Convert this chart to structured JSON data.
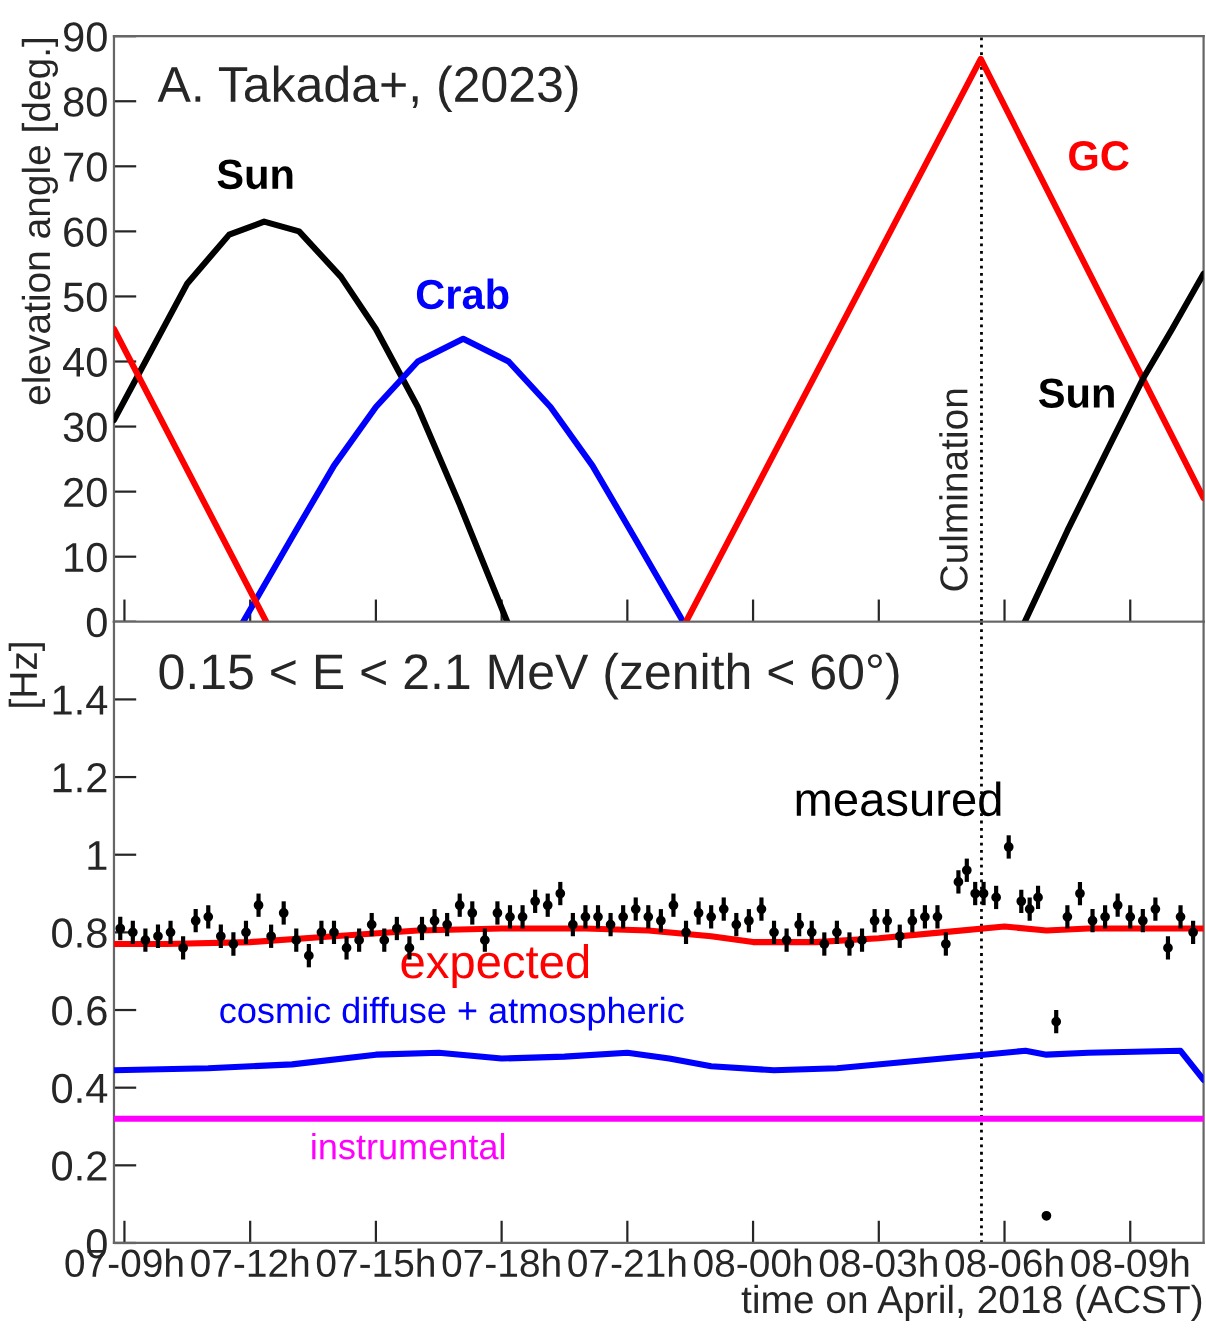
{
  "chart_data": [
    {
      "type": "line",
      "annotations": [
        "A. Takada+, (2023)"
      ],
      "ylabel": "elevation angle [deg.]",
      "xlim": [
        "2018-04-07T08:45",
        "2018-04-08T10:45"
      ],
      "xticks": [
        {
          "value": "2018-04-07T09:00",
          "label": null
        },
        {
          "value": "2018-04-07T12:00",
          "label": null
        },
        {
          "value": "2018-04-07T15:00",
          "label": null
        },
        {
          "value": "2018-04-07T18:00",
          "label": null
        },
        {
          "value": "2018-04-07T21:00",
          "label": null
        },
        {
          "value": "2018-04-08T00:00",
          "label": null
        },
        {
          "value": "2018-04-08T03:00",
          "label": null
        },
        {
          "value": "2018-04-08T06:00",
          "label": null
        },
        {
          "value": "2018-04-08T09:00",
          "label": null
        }
      ],
      "ylim": [
        0,
        90
      ],
      "yticks": [
        0,
        10,
        20,
        30,
        40,
        50,
        60,
        70,
        80,
        90
      ],
      "tick_labels": "y",
      "grid": false,
      "legend": false,
      "marker": "none",
      "line_style": "solid",
      "ref_lines": [
        {
          "axis": "x",
          "value": "2018-04-08T05:27",
          "label": "Culmination",
          "line_style": "dotted",
          "color": "#000000"
        }
      ],
      "series": [
        {
          "name": "Sun",
          "color": "#000000",
          "x": [
            "2018-04-07T08:45",
            "2018-04-07T09:30",
            "2018-04-07T10:30",
            "2018-04-07T11:30",
            "2018-04-07T12:20",
            "2018-04-07T13:10",
            "2018-04-07T14:10",
            "2018-04-07T15:00",
            "2018-04-07T16:00",
            "2018-04-07T17:00",
            "2018-04-07T18:08"
          ],
          "values": [
            31,
            40,
            52,
            59.5,
            61.5,
            60,
            53,
            45,
            33,
            18,
            0
          ]
        },
        {
          "name": "Crab",
          "color": "#0000ff",
          "x": [
            "2018-04-07T11:50",
            "2018-04-07T13:00",
            "2018-04-07T14:00",
            "2018-04-07T15:00",
            "2018-04-07T16:00",
            "2018-04-07T17:05",
            "2018-04-07T18:10",
            "2018-04-07T19:10",
            "2018-04-07T20:10",
            "2018-04-07T21:10",
            "2018-04-07T22:20"
          ],
          "values": [
            0,
            13,
            24,
            33,
            40,
            43.5,
            40,
            33,
            24,
            13,
            0
          ]
        },
        {
          "name": "GC",
          "color": "#ff0000",
          "x": [
            "2018-04-07T08:45",
            "2018-04-07T12:23",
            "2018-04-07T17:00",
            "2018-04-07T22:24",
            "2018-04-08T05:26",
            "2018-04-08T10:45"
          ],
          "values": [
            45,
            0,
            null,
            0,
            86.5,
            19
          ]
        },
        {
          "name": "Sun",
          "color": "#000000",
          "x": [
            "2018-04-08T06:29",
            "2018-04-08T07:30",
            "2018-04-08T08:30",
            "2018-04-08T09:20",
            "2018-04-08T10:00",
            "2018-04-08T10:45"
          ],
          "values": [
            0,
            14,
            27,
            37.7,
            45,
            53.5
          ]
        }
      ]
    },
    {
      "type": "line",
      "annotations": [
        "0.15 < E < 2.1 MeV (zenith < 60°)"
      ],
      "ylabel": "[Hz]",
      "xlabel": "time on April, 2018 (ACST)",
      "xlim": [
        "2018-04-07T08:45",
        "2018-04-08T10:45"
      ],
      "xticks": [
        {
          "value": "2018-04-07T09:00",
          "label": "07-09h"
        },
        {
          "value": "2018-04-07T12:00",
          "label": "07-12h"
        },
        {
          "value": "2018-04-07T15:00",
          "label": "07-15h"
        },
        {
          "value": "2018-04-07T18:00",
          "label": "07-18h"
        },
        {
          "value": "2018-04-07T21:00",
          "label": "07-21h"
        },
        {
          "value": "2018-04-08T00:00",
          "label": "08-00h"
        },
        {
          "value": "2018-04-08T03:00",
          "label": "08-03h"
        },
        {
          "value": "2018-04-08T06:00",
          "label": "08-06h"
        },
        {
          "value": "2018-04-08T09:00",
          "label": "08-09h"
        }
      ],
      "ylim": [
        0,
        1.6
      ],
      "yticks": [
        0,
        0.2,
        0.4,
        0.6,
        0.8,
        1,
        1.2,
        1.4
      ],
      "grid": false,
      "legend": false,
      "line_style": "solid",
      "ref_lines": [
        {
          "axis": "x",
          "value": "2018-04-08T05:27",
          "label": null,
          "line_style": "dotted",
          "color": "#000000"
        }
      ],
      "series": [
        {
          "name": "measured",
          "type": "scatter",
          "marker": "circle",
          "color": "#000000",
          "x": [
            "2018-04-07T08:54",
            "2018-04-07T09:12",
            "2018-04-07T09:30",
            "2018-04-07T09:48",
            "2018-04-07T10:06",
            "2018-04-07T10:24",
            "2018-04-07T10:42",
            "2018-04-07T11:00",
            "2018-04-07T11:18",
            "2018-04-07T11:36",
            "2018-04-07T11:54",
            "2018-04-07T12:12",
            "2018-04-07T12:30",
            "2018-04-07T12:48",
            "2018-04-07T13:06",
            "2018-04-07T13:24",
            "2018-04-07T13:42",
            "2018-04-07T14:00",
            "2018-04-07T14:18",
            "2018-04-07T14:36",
            "2018-04-07T14:54",
            "2018-04-07T15:12",
            "2018-04-07T15:30",
            "2018-04-07T15:48",
            "2018-04-07T16:06",
            "2018-04-07T16:24",
            "2018-04-07T16:42",
            "2018-04-07T17:00",
            "2018-04-07T17:18",
            "2018-04-07T17:36",
            "2018-04-07T17:54",
            "2018-04-07T18:12",
            "2018-04-07T18:30",
            "2018-04-07T18:48",
            "2018-04-07T19:06",
            "2018-04-07T19:24",
            "2018-04-07T19:42",
            "2018-04-07T20:00",
            "2018-04-07T20:18",
            "2018-04-07T20:36",
            "2018-04-07T20:54",
            "2018-04-07T21:12",
            "2018-04-07T21:30",
            "2018-04-07T21:48",
            "2018-04-07T22:06",
            "2018-04-07T22:24",
            "2018-04-07T22:42",
            "2018-04-07T23:00",
            "2018-04-07T23:18",
            "2018-04-07T23:36",
            "2018-04-07T23:54",
            "2018-04-08T00:12",
            "2018-04-08T00:30",
            "2018-04-08T00:48",
            "2018-04-08T01:06",
            "2018-04-08T01:24",
            "2018-04-08T01:42",
            "2018-04-08T02:00",
            "2018-04-08T02:18",
            "2018-04-08T02:36",
            "2018-04-08T02:54",
            "2018-04-08T03:12",
            "2018-04-08T03:30",
            "2018-04-08T03:48",
            "2018-04-08T04:06",
            "2018-04-08T04:24",
            "2018-04-08T04:36",
            "2018-04-08T04:54",
            "2018-04-08T05:06",
            "2018-04-08T05:18",
            "2018-04-08T05:30",
            "2018-04-08T05:48",
            "2018-04-08T06:06",
            "2018-04-08T06:24",
            "2018-04-08T06:36",
            "2018-04-08T06:48",
            "2018-04-08T07:00",
            "2018-04-08T07:14",
            "2018-04-08T07:30",
            "2018-04-08T07:48",
            "2018-04-08T08:06",
            "2018-04-08T08:24",
            "2018-04-08T08:42",
            "2018-04-08T09:00",
            "2018-04-08T09:18",
            "2018-04-08T09:36",
            "2018-04-08T09:54",
            "2018-04-08T10:12",
            "2018-04-08T10:30"
          ],
          "values": [
            0.81,
            0.8,
            0.78,
            0.79,
            0.8,
            0.76,
            0.83,
            0.84,
            0.79,
            0.77,
            0.8,
            0.87,
            0.79,
            0.85,
            0.78,
            0.74,
            0.8,
            0.8,
            0.76,
            0.78,
            0.82,
            0.78,
            0.81,
            0.76,
            0.81,
            0.83,
            0.82,
            0.87,
            0.85,
            0.78,
            0.85,
            0.84,
            0.84,
            0.88,
            0.87,
            0.9,
            0.82,
            0.84,
            0.84,
            0.82,
            0.84,
            0.86,
            0.84,
            0.83,
            0.87,
            0.8,
            0.85,
            0.84,
            0.86,
            0.82,
            0.83,
            0.86,
            0.8,
            0.78,
            0.82,
            0.8,
            0.77,
            0.8,
            0.77,
            0.78,
            0.83,
            0.83,
            0.79,
            0.83,
            0.84,
            0.84,
            0.77,
            0.93,
            0.96,
            0.9,
            0.9,
            0.89,
            1.02,
            0.88,
            0.86,
            0.89,
            0.07,
            0.57,
            0.84,
            0.9,
            0.83,
            0.84,
            0.87,
            0.84,
            0.83,
            0.86,
            0.76,
            0.84,
            0.8
          ],
          "errors": [
            0.03,
            0.03,
            0.03,
            0.03,
            0.03,
            0.03,
            0.03,
            0.03,
            0.03,
            0.03,
            0.03,
            0.03,
            0.03,
            0.03,
            0.03,
            0.03,
            0.03,
            0.03,
            0.03,
            0.03,
            0.03,
            0.03,
            0.03,
            0.03,
            0.03,
            0.03,
            0.03,
            0.03,
            0.03,
            0.03,
            0.03,
            0.03,
            0.03,
            0.03,
            0.03,
            0.03,
            0.03,
            0.03,
            0.03,
            0.03,
            0.03,
            0.03,
            0.03,
            0.03,
            0.03,
            0.03,
            0.03,
            0.03,
            0.03,
            0.03,
            0.03,
            0.03,
            0.03,
            0.03,
            0.03,
            0.03,
            0.03,
            0.03,
            0.03,
            0.03,
            0.03,
            0.03,
            0.03,
            0.03,
            0.03,
            0.03,
            0.03,
            0.03,
            0.03,
            0.03,
            0.03,
            0.03,
            0.03,
            0.03,
            0.03,
            0.03,
            0.01,
            0.03,
            0.03,
            0.03,
            0.03,
            0.03,
            0.03,
            0.03,
            0.03,
            0.03,
            0.03,
            0.03,
            0.03
          ]
        },
        {
          "name": "expected",
          "color": "#ff0000",
          "x": [
            "2018-04-07T08:45",
            "2018-04-07T10:00",
            "2018-04-07T12:00",
            "2018-04-07T14:00",
            "2018-04-07T16:00",
            "2018-04-07T18:00",
            "2018-04-07T20:00",
            "2018-04-07T21:30",
            "2018-04-07T23:00",
            "2018-04-08T00:00",
            "2018-04-08T01:30",
            "2018-04-08T03:00",
            "2018-04-08T04:30",
            "2018-04-08T06:00",
            "2018-04-08T07:00",
            "2018-04-08T08:00",
            "2018-04-08T10:45"
          ],
          "values": [
            0.77,
            0.77,
            0.775,
            0.79,
            0.805,
            0.81,
            0.81,
            0.805,
            0.79,
            0.775,
            0.775,
            0.785,
            0.8,
            0.815,
            0.805,
            0.81,
            0.81
          ]
        },
        {
          "name": "cosmic diffuse + atmospheric",
          "color": "#0000ff",
          "x": [
            "2018-04-07T08:45",
            "2018-04-07T11:00",
            "2018-04-07T13:00",
            "2018-04-07T15:00",
            "2018-04-07T16:30",
            "2018-04-07T18:00",
            "2018-04-07T19:30",
            "2018-04-07T21:00",
            "2018-04-07T22:00",
            "2018-04-07T23:00",
            "2018-04-08T00:30",
            "2018-04-08T02:00",
            "2018-04-08T04:00",
            "2018-04-08T05:30",
            "2018-04-08T06:30",
            "2018-04-08T07:00",
            "2018-04-08T08:00",
            "2018-04-08T10:12",
            "2018-04-08T10:45"
          ],
          "values": [
            0.445,
            0.45,
            0.46,
            0.485,
            0.49,
            0.475,
            0.48,
            0.49,
            0.475,
            0.455,
            0.445,
            0.45,
            0.47,
            0.485,
            0.495,
            0.485,
            0.49,
            0.495,
            0.42
          ]
        },
        {
          "name": "instrumental",
          "color": "#ff00ff",
          "x": [
            "2018-04-07T08:45",
            "2018-04-08T10:45"
          ],
          "values": [
            0.32,
            0.32
          ]
        }
      ]
    }
  ]
}
